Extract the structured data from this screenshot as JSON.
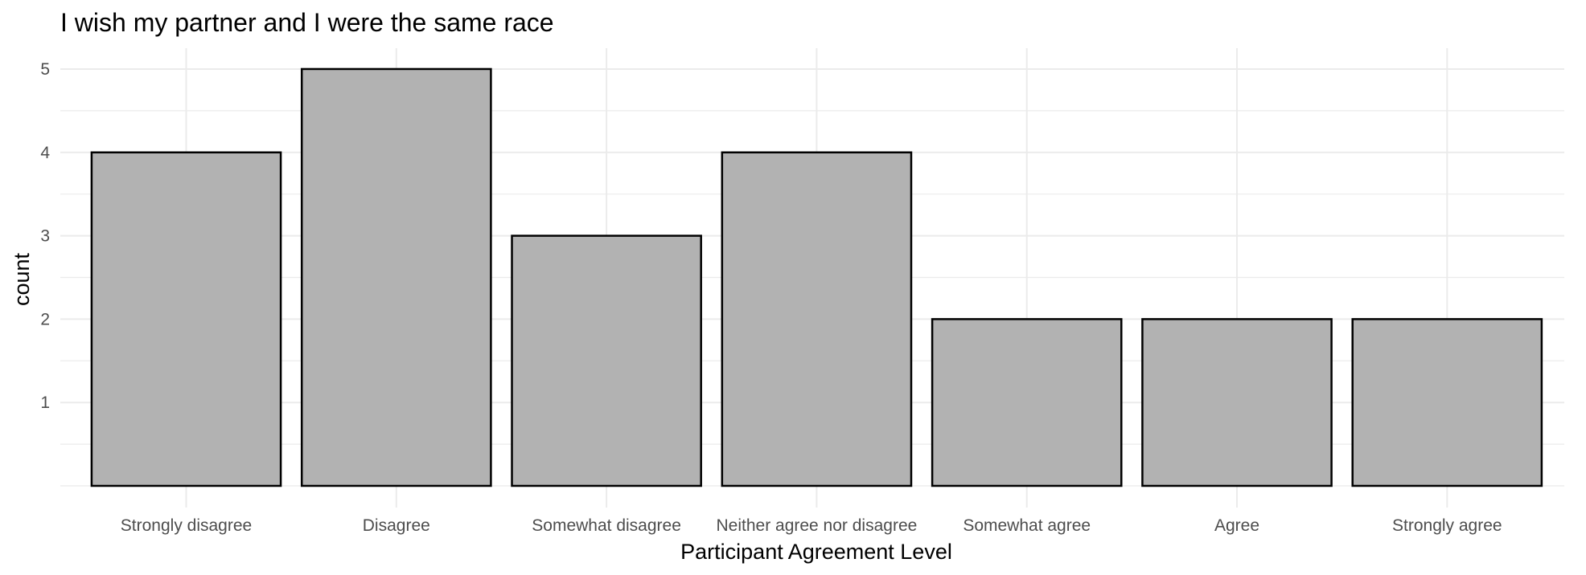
{
  "chart_data": {
    "type": "bar",
    "title": "I wish my partner and I were the same race",
    "xlabel": "Participant Agreement Level",
    "ylabel": "count",
    "categories": [
      "Strongly disagree",
      "Disagree",
      "Somewhat disagree",
      "Neither agree nor disagree",
      "Somewhat agree",
      "Agree",
      "Strongly agree"
    ],
    "values": [
      4,
      5,
      3,
      4,
      2,
      2,
      2
    ],
    "yticks": [
      1,
      2,
      3,
      4,
      5
    ],
    "ylim": [
      0,
      5.25
    ],
    "grid": true,
    "legend": "none",
    "bar_color": "#b2b2b2",
    "bar_border_color": "#000000"
  }
}
